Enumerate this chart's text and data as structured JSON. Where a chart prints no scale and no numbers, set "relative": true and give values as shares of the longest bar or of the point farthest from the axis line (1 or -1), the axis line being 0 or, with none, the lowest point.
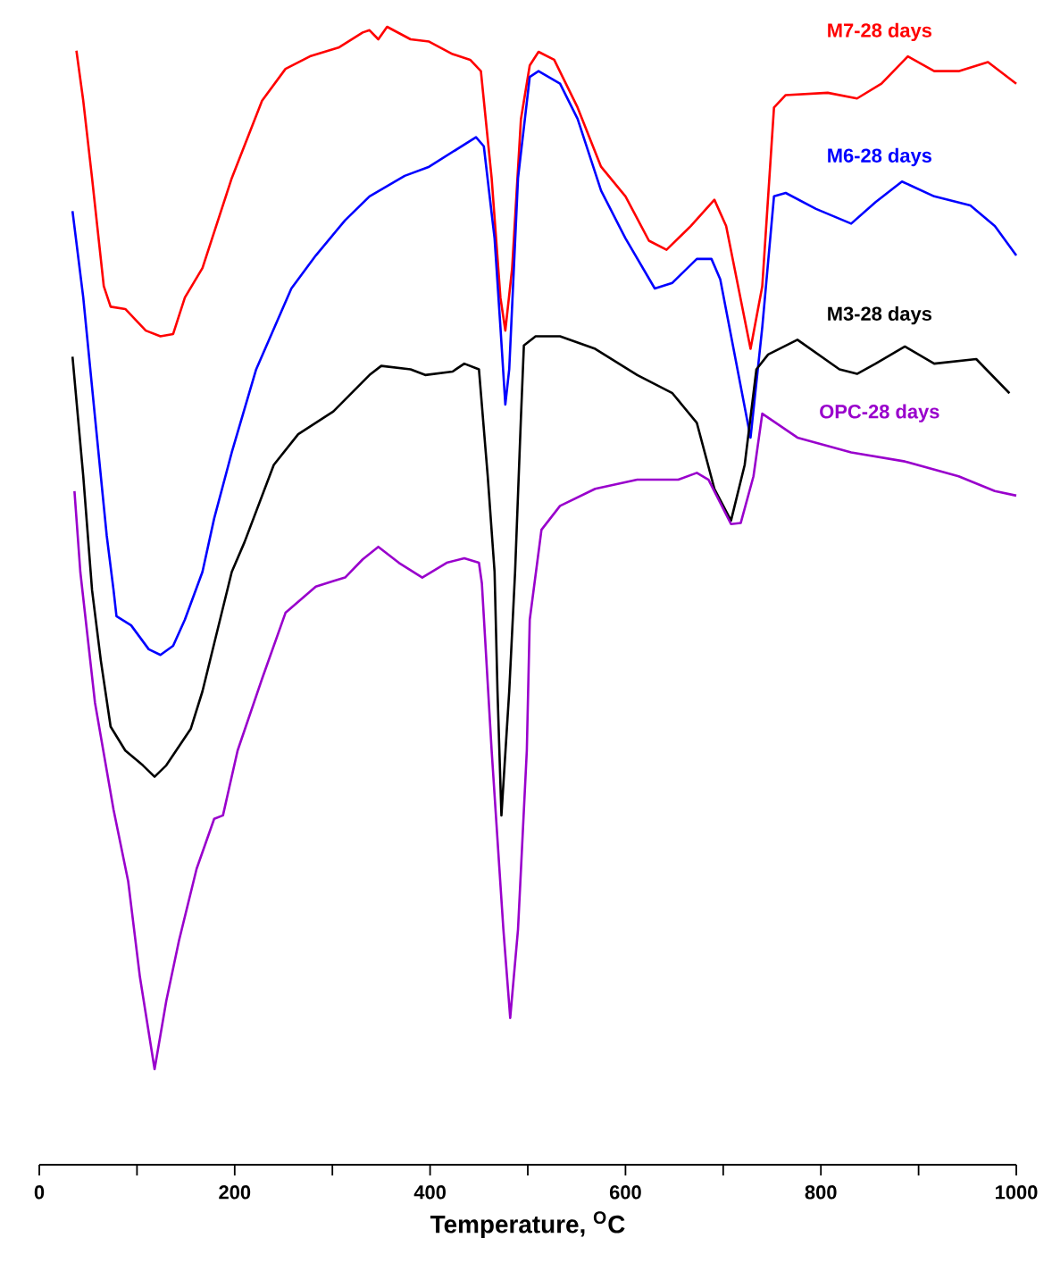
{
  "chart_data": {
    "type": "line",
    "relative": true,
    "xlabel": "Temperature, $^{O}$C",
    "xlim": [
      0,
      1000
    ],
    "xticks": [
      0,
      {
        "value": 100,
        "label": null
      },
      200,
      {
        "value": 300,
        "label": null
      },
      400,
      {
        "value": 500,
        "label": null
      },
      600,
      {
        "value": 700,
        "label": null
      },
      800,
      {
        "value": 900,
        "label": null
      },
      1000
    ],
    "series": [
      {
        "name": "M7-28 days",
        "color": "#ff0000",
        "x": [
          38,
          45,
          54,
          66,
          73,
          88,
          109,
          124,
          137,
          149,
          167,
          197,
          228,
          252,
          277,
          307,
          331,
          338,
          347,
          356,
          380,
          399,
          423,
          441,
          452,
          463,
          472,
          477,
          484,
          493,
          502,
          511,
          527,
          551,
          575,
          600,
          624,
          642,
          667,
          691,
          703,
          728,
          740,
          752,
          764,
          807,
          837,
          862,
          889,
          916,
          941,
          971,
          1000
        ],
        "values": [
          0.979,
          0.935,
          0.867,
          0.772,
          0.754,
          0.752,
          0.733,
          0.728,
          0.73,
          0.762,
          0.788,
          0.867,
          0.935,
          0.963,
          0.974,
          0.982,
          0.995,
          0.997,
          0.989,
          1,
          0.989,
          0.987,
          0.976,
          0.971,
          0.961,
          0.867,
          0.762,
          0.733,
          0.788,
          0.919,
          0.966,
          0.978,
          0.971,
          0.929,
          0.877,
          0.851,
          0.812,
          0.804,
          0.825,
          0.848,
          0.825,
          0.717,
          0.772,
          0.929,
          0.94,
          0.942,
          0.937,
          0.95,
          0.974,
          0.961,
          0.961,
          0.969,
          0.95
        ]
      },
      {
        "name": "M6-28 days",
        "color": "#0000ff",
        "x": [
          34,
          45,
          57,
          69,
          76,
          79,
          94,
          112,
          124,
          137,
          149,
          167,
          179,
          197,
          222,
          258,
          283,
          313,
          338,
          374,
          399,
          423,
          447,
          455,
          466,
          472,
          477,
          481,
          490,
          502,
          511,
          533,
          551,
          575,
          600,
          630,
          648,
          673,
          688,
          697,
          728,
          740,
          752,
          764,
          795,
          831,
          856,
          883,
          916,
          953,
          978,
          1000
        ],
        "values": [
          0.838,
          0.762,
          0.657,
          0.553,
          0.505,
          0.482,
          0.474,
          0.453,
          0.448,
          0.456,
          0.479,
          0.521,
          0.568,
          0.626,
          0.699,
          0.77,
          0.799,
          0.83,
          0.851,
          0.869,
          0.877,
          0.89,
          0.903,
          0.895,
          0.814,
          0.736,
          0.668,
          0.699,
          0.867,
          0.956,
          0.961,
          0.95,
          0.919,
          0.856,
          0.814,
          0.77,
          0.775,
          0.796,
          0.796,
          0.778,
          0.639,
          0.736,
          0.851,
          0.854,
          0.84,
          0.827,
          0.846,
          0.864,
          0.851,
          0.843,
          0.825,
          0.799
        ]
      },
      {
        "name": "M3-28 days",
        "color": "#000000",
        "x": [
          34,
          45,
          54,
          63,
          73,
          88,
          106,
          118,
          130,
          155,
          167,
          179,
          197,
          210,
          240,
          265,
          301,
          338,
          350,
          380,
          395,
          423,
          435,
          450,
          459,
          466,
          469,
          473,
          481,
          487,
          493,
          496,
          508,
          533,
          569,
          612,
          648,
          673,
          691,
          708,
          722,
          734,
          746,
          776,
          819,
          837,
          856,
          886,
          916,
          959,
          993
        ],
        "values": [
          0.71,
          0.605,
          0.505,
          0.443,
          0.385,
          0.364,
          0.351,
          0.341,
          0.351,
          0.383,
          0.416,
          0.458,
          0.521,
          0.547,
          0.615,
          0.642,
          0.662,
          0.694,
          0.702,
          0.699,
          0.694,
          0.697,
          0.704,
          0.699,
          0.605,
          0.521,
          0.416,
          0.307,
          0.416,
          0.521,
          0.657,
          0.72,
          0.728,
          0.728,
          0.717,
          0.694,
          0.678,
          0.652,
          0.594,
          0.566,
          0.615,
          0.699,
          0.712,
          0.725,
          0.699,
          0.695,
          0.704,
          0.719,
          0.704,
          0.708,
          0.678
        ]
      },
      {
        "name": "OPC-28 days",
        "color": "#9900cc",
        "x": [
          36,
          42,
          57,
          76,
          91,
          103,
          118,
          130,
          143,
          161,
          179,
          188,
          203,
          228,
          252,
          283,
          301,
          313,
          331,
          347,
          368,
          392,
          417,
          435,
          450,
          453,
          463,
          475,
          482,
          490,
          499,
          502,
          514,
          533,
          569,
          612,
          654,
          673,
          685,
          708,
          718,
          731,
          740,
          776,
          831,
          886,
          941,
          978,
          1000
        ],
        "values": [
          0.592,
          0.521,
          0.406,
          0.312,
          0.249,
          0.165,
          0.084,
          0.144,
          0.197,
          0.26,
          0.304,
          0.307,
          0.364,
          0.427,
          0.485,
          0.508,
          0.513,
          0.516,
          0.532,
          0.543,
          0.529,
          0.516,
          0.529,
          0.533,
          0.529,
          0.511,
          0.364,
          0.207,
          0.129,
          0.207,
          0.364,
          0.479,
          0.558,
          0.579,
          0.594,
          0.602,
          0.602,
          0.608,
          0.602,
          0.563,
          0.564,
          0.605,
          0.66,
          0.639,
          0.626,
          0.618,
          0.605,
          0.592,
          0.588
        ]
      }
    ]
  }
}
